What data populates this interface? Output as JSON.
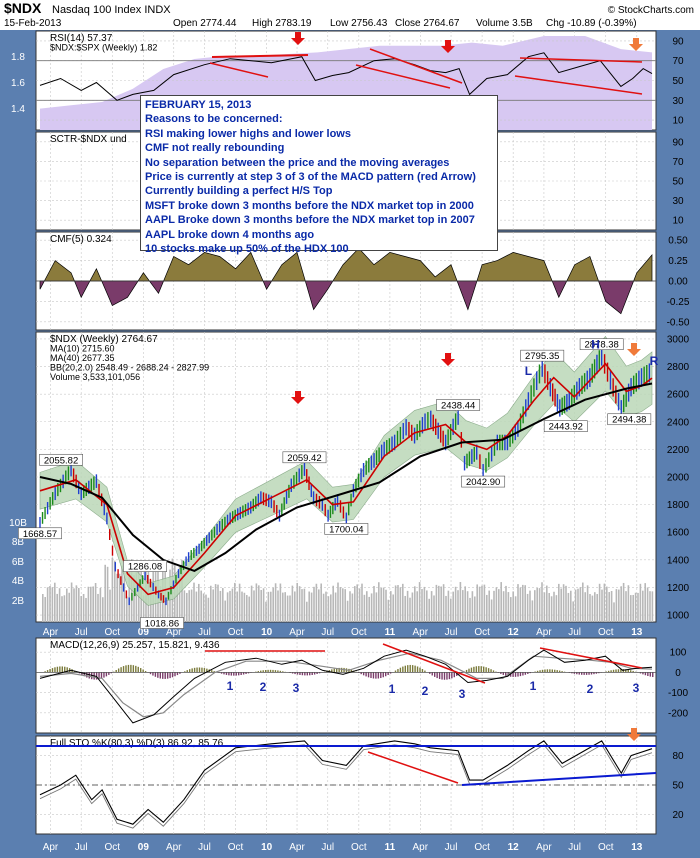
{
  "header": {
    "symbol": "$NDX",
    "name": "Nasdaq 100 Index",
    "exchange": "INDX",
    "date": "15-Feb-2013",
    "open_label": "Open",
    "open": "2774.44",
    "high_label": "High",
    "high": "2783.19",
    "low_label": "Low",
    "low": "2756.43",
    "close_label": "Close",
    "close": "2764.67",
    "volume_label": "Volume",
    "volume": "3.5B",
    "chg_label": "Chg",
    "chg": "-10.89 (-0.39%)",
    "watermark": "© StockCharts.com"
  },
  "annotation": {
    "lines": [
      "FEBRUARY 15, 2013",
      "Reasons to be concerned:",
      "RSI making lower highs and lower lows",
      "CMF not really rebounding",
      "No separation between the price and the moving averages",
      "Price is currently at step 3 of 3 of the MACD pattern (red Arrow)",
      "Currently building a perfect H/S Top",
      "MSFT broke down 3 months before the NDX market top in  2000",
      "AAPL Broke down 3 months before the NDX market top in 2007",
      "AAPL broke down 4 months ago",
      "10 stocks make up 50% of the HDX 100"
    ]
  },
  "colors": {
    "panel_bg": "#ffffff",
    "outer_bg": "#5b7fb0",
    "grid": "#c8c8c8",
    "ratio_fill": "#d7c8f2",
    "rsi_line": "#000000",
    "cmf_fill": "#8b7b3c",
    "cmf_neg": "#7a3b6a",
    "ma10": "#cc0000",
    "ma40": "#000000",
    "bb_fill": "#bcd8b8",
    "up_bar": "#1a8a1a",
    "down_bar": "#cc0000",
    "blue_bar": "#1f3fd0",
    "volume": "#b8b8b8",
    "trend_red": "#e01010",
    "trend_blue": "#0a1ad0",
    "arrow_red": "#e21010",
    "arrow_orange": "#f07a3a",
    "label_blue": "#1a2aa8"
  },
  "time_axis": {
    "start": "2008-03-01",
    "end": "2013-02-15",
    "labels": [
      {
        "date": "2008-04-01",
        "text": "Apr"
      },
      {
        "date": "2008-07-01",
        "text": "Jul"
      },
      {
        "date": "2008-10-01",
        "text": "Oct"
      },
      {
        "date": "2009-01-01",
        "text": "09"
      },
      {
        "date": "2009-04-01",
        "text": "Apr"
      },
      {
        "date": "2009-07-01",
        "text": "Jul"
      },
      {
        "date": "2009-10-01",
        "text": "Oct"
      },
      {
        "date": "2010-01-01",
        "text": "10"
      },
      {
        "date": "2010-04-01",
        "text": "Apr"
      },
      {
        "date": "2010-07-01",
        "text": "Jul"
      },
      {
        "date": "2010-10-01",
        "text": "Oct"
      },
      {
        "date": "2011-01-01",
        "text": "11"
      },
      {
        "date": "2011-04-01",
        "text": "Apr"
      },
      {
        "date": "2011-07-01",
        "text": "Jul"
      },
      {
        "date": "2011-10-01",
        "text": "Oct"
      },
      {
        "date": "2012-01-01",
        "text": "12"
      },
      {
        "date": "2012-04-01",
        "text": "Apr"
      },
      {
        "date": "2012-07-01",
        "text": "Jul"
      },
      {
        "date": "2012-10-01",
        "text": "Oct"
      },
      {
        "date": "2013-01-01",
        "text": "13"
      }
    ]
  },
  "chart_data": [
    {
      "type": "line",
      "panel": "rsi",
      "legend": [
        "RSI(14) 57.37",
        "$NDX:$SPX (Weekly) 1.82"
      ],
      "ylim": [
        0,
        100
      ],
      "yticks_right": [
        10,
        30,
        50,
        70,
        90
      ],
      "yticks_left": [
        "1.8",
        "1.6",
        "1.4"
      ],
      "ratio_range": [
        1.35,
        1.95
      ],
      "series": [
        {
          "name": "RSI(14)",
          "x": [
            "2008-03-01",
            "2008-05-01",
            "2008-07-01",
            "2008-08-15",
            "2008-10-15",
            "2008-12-01",
            "2009-02-01",
            "2009-04-01",
            "2009-07-01",
            "2009-09-15",
            "2010-01-15",
            "2010-04-15",
            "2010-05-25",
            "2010-07-15",
            "2010-09-01",
            "2010-11-15",
            "2011-01-15",
            "2011-03-15",
            "2011-05-01",
            "2011-06-15",
            "2011-07-25",
            "2011-08-25",
            "2011-10-15",
            "2011-12-15",
            "2012-02-15",
            "2012-04-01",
            "2012-05-15",
            "2012-07-15",
            "2012-09-15",
            "2012-11-15",
            "2012-12-20",
            "2013-01-20",
            "2013-02-15"
          ],
          "values": [
            45,
            52,
            40,
            48,
            30,
            36,
            40,
            56,
            66,
            72,
            68,
            74,
            50,
            55,
            58,
            70,
            72,
            66,
            60,
            58,
            62,
            36,
            52,
            56,
            74,
            78,
            58,
            64,
            70,
            44,
            52,
            62,
            57
          ]
        },
        {
          "name": "$NDX:$SPX",
          "x": [
            "2008-03-01",
            "2008-06-01",
            "2008-09-01",
            "2008-12-01",
            "2009-03-01",
            "2009-06-01",
            "2009-09-01",
            "2009-12-01",
            "2010-06-01",
            "2010-12-01",
            "2011-06-01",
            "2011-09-01",
            "2011-12-01",
            "2012-04-01",
            "2012-08-01",
            "2012-11-15",
            "2013-02-15"
          ],
          "values": [
            1.48,
            1.5,
            1.52,
            1.6,
            1.72,
            1.78,
            1.8,
            1.8,
            1.82,
            1.86,
            1.86,
            1.88,
            1.86,
            1.92,
            1.92,
            1.84,
            1.82
          ]
        }
      ],
      "annotations": [
        "lower highs trendlines",
        "lower lows trendline"
      ]
    },
    {
      "type": "line",
      "panel": "sctr",
      "legend": [
        "SCTR-$NDX und"
      ],
      "yticks_right": [
        10,
        30,
        50,
        70,
        90
      ],
      "series": []
    },
    {
      "type": "area",
      "panel": "cmf",
      "legend": [
        "CMF(5) 0.324"
      ],
      "ylim": [
        -0.6,
        0.6
      ],
      "yticks_right": [
        "0.50",
        "0.25",
        "0.00",
        "-0.25",
        "-0.50"
      ],
      "series": [
        {
          "name": "CMF(5)",
          "x": [
            "2008-03-01",
            "2008-04-15",
            "2008-06-01",
            "2008-07-01",
            "2008-08-15",
            "2008-10-01",
            "2008-11-15",
            "2009-01-01",
            "2009-02-15",
            "2009-04-01",
            "2009-05-15",
            "2009-07-01",
            "2009-08-15",
            "2009-10-01",
            "2009-11-15",
            "2010-01-01",
            "2010-02-15",
            "2010-04-01",
            "2010-05-20",
            "2010-07-01",
            "2010-08-15",
            "2010-10-01",
            "2010-11-15",
            "2011-01-01",
            "2011-02-15",
            "2011-04-01",
            "2011-05-15",
            "2011-07-01",
            "2011-08-20",
            "2011-10-01",
            "2011-11-15",
            "2012-01-01",
            "2012-02-15",
            "2012-04-01",
            "2012-05-15",
            "2012-07-01",
            "2012-08-15",
            "2012-10-01",
            "2012-11-15",
            "2013-01-01",
            "2013-02-15"
          ],
          "values": [
            -0.1,
            0.25,
            0.1,
            -0.2,
            0.15,
            -0.3,
            -0.2,
            0.1,
            -0.15,
            0.3,
            0.2,
            0.35,
            0.3,
            0.15,
            0.35,
            -0.1,
            0.2,
            0.35,
            -0.35,
            -0.1,
            0.2,
            0.4,
            0.2,
            0.35,
            0.3,
            0.25,
            0.05,
            0.2,
            -0.35,
            0.2,
            0.25,
            0.35,
            0.3,
            0.25,
            -0.2,
            0.2,
            0.3,
            -0.25,
            -0.4,
            0.1,
            0.32
          ]
        }
      ]
    },
    {
      "type": "line",
      "panel": "price",
      "legend": [
        "$NDX (Weekly) 2764.67",
        "MA(10) 2715.60",
        "MA(40) 2677.35",
        "BB(20,2.0) 2548.49 - 2688.24 - 2827.99",
        "Volume 3,533,101,056"
      ],
      "ylim": [
        950,
        3050
      ],
      "yticks_right": [
        1000,
        1200,
        1400,
        1600,
        1800,
        2000,
        2200,
        2400,
        2600,
        2800,
        3000
      ],
      "volume_ticks_left": [
        "10B",
        "8B",
        "6B",
        "4B",
        "2B"
      ],
      "series": [
        {
          "name": "$NDX",
          "x": [
            "2008-03-01",
            "2008-04-15",
            "2008-06-01",
            "2008-07-01",
            "2008-08-15",
            "2008-09-15",
            "2008-10-10",
            "2008-11-20",
            "2008-12-15",
            "2009-01-06",
            "2009-02-15",
            "2009-03-09",
            "2009-04-15",
            "2009-05-15",
            "2009-06-15",
            "2009-07-15",
            "2009-08-15",
            "2009-09-15",
            "2009-10-15",
            "2009-11-15",
            "2009-12-15",
            "2010-01-15",
            "2010-02-08",
            "2010-03-15",
            "2010-04-23",
            "2010-05-20",
            "2010-06-15",
            "2010-07-02",
            "2010-07-30",
            "2010-08-25",
            "2010-09-15",
            "2010-10-15",
            "2010-11-15",
            "2010-12-15",
            "2011-01-15",
            "2011-02-18",
            "2011-03-15",
            "2011-04-15",
            "2011-05-02",
            "2011-06-15",
            "2011-07-22",
            "2011-08-10",
            "2011-09-15",
            "2011-10-04",
            "2011-11-15",
            "2011-12-15",
            "2012-01-15",
            "2012-02-15",
            "2012-03-27",
            "2012-04-20",
            "2012-05-18",
            "2012-06-15",
            "2012-07-15",
            "2012-08-15",
            "2012-09-19",
            "2012-10-15",
            "2012-11-16",
            "2012-12-15",
            "2013-01-15",
            "2013-02-15"
          ],
          "values": [
            1668.57,
            1880,
            2055.82,
            1880,
            1970,
            1700,
            1350,
            1100,
            1200,
            1286.08,
            1150,
            1100,
            1300,
            1420,
            1480,
            1560,
            1640,
            1700,
            1740,
            1780,
            1850,
            1820,
            1720,
            1940,
            2059.42,
            1850,
            1800,
            1720,
            1830,
            1700.04,
            1900,
            2050,
            2120,
            2200,
            2250,
            2360,
            2300,
            2400,
            2420,
            2250,
            2438.44,
            2100,
            2180,
            2042.9,
            2250,
            2250,
            2350,
            2550,
            2795.35,
            2650,
            2500,
            2550,
            2650,
            2720,
            2878.38,
            2700,
            2494.38,
            2650,
            2720,
            2764.67
          ]
        },
        {
          "name": "MA(10)",
          "x": [
            "2008-03-01",
            "2008-06-15",
            "2008-09-15",
            "2008-11-15",
            "2009-01-15",
            "2009-04-01",
            "2009-07-01",
            "2009-10-01",
            "2010-01-15",
            "2010-04-30",
            "2010-07-15",
            "2010-09-15",
            "2010-12-15",
            "2011-03-15",
            "2011-06-15",
            "2011-08-15",
            "2011-10-15",
            "2011-12-15",
            "2012-03-01",
            "2012-04-30",
            "2012-06-30",
            "2012-09-30",
            "2012-12-01",
            "2013-01-15",
            "2013-02-15"
          ],
          "values": [
            1900,
            1980,
            1800,
            1300,
            1150,
            1200,
            1450,
            1720,
            1850,
            1980,
            1800,
            1820,
            2150,
            2320,
            2380,
            2250,
            2200,
            2300,
            2550,
            2720,
            2580,
            2820,
            2620,
            2660,
            2716
          ]
        },
        {
          "name": "MA(40)",
          "x": [
            "2008-03-01",
            "2008-06-01",
            "2008-09-01",
            "2008-12-01",
            "2009-03-01",
            "2009-06-01",
            "2009-09-01",
            "2009-12-01",
            "2010-04-01",
            "2010-08-01",
            "2010-12-01",
            "2011-04-01",
            "2011-08-01",
            "2011-12-01",
            "2012-04-01",
            "2012-08-01",
            "2012-12-01",
            "2013-02-15"
          ],
          "values": [
            2000,
            1950,
            1850,
            1580,
            1400,
            1320,
            1450,
            1620,
            1780,
            1870,
            1960,
            2150,
            2250,
            2270,
            2420,
            2560,
            2640,
            2677
          ]
        }
      ],
      "labels": [
        "2055.82",
        "1668.57",
        "1286.08",
        "1018.86",
        "2059.42",
        "1700.04",
        "2438.44",
        "2042.90",
        "2795.35",
        "2443.92",
        "2878.38",
        "2494.38"
      ],
      "letters": [
        "L",
        "H",
        "R"
      ]
    },
    {
      "type": "line",
      "panel": "macd",
      "legend": [
        "MACD(12,26,9) 25.257, 15.821, 9.436"
      ],
      "ylim": [
        -300,
        170
      ],
      "yticks_right": [
        100,
        0,
        -100,
        -200
      ],
      "series": [
        {
          "name": "MACD",
          "x": [
            "2008-03-01",
            "2008-06-01",
            "2008-08-15",
            "2008-10-01",
            "2008-12-01",
            "2009-02-01",
            "2009-04-01",
            "2009-06-01",
            "2009-09-01",
            "2009-12-01",
            "2010-02-15",
            "2010-04-15",
            "2010-06-15",
            "2010-08-15",
            "2010-10-15",
            "2010-12-15",
            "2011-02-18",
            "2011-04-15",
            "2011-06-15",
            "2011-08-20",
            "2011-10-15",
            "2011-12-15",
            "2012-02-15",
            "2012-04-01",
            "2012-06-01",
            "2012-08-01",
            "2012-09-30",
            "2012-11-20",
            "2013-01-01",
            "2013-02-15"
          ],
          "values": [
            -30,
            10,
            -20,
            -120,
            -250,
            -210,
            -120,
            -30,
            50,
            70,
            40,
            60,
            10,
            -10,
            20,
            80,
            110,
            80,
            40,
            -50,
            -40,
            -20,
            60,
            110,
            50,
            60,
            80,
            10,
            20,
            25
          ]
        },
        {
          "name": "Signal",
          "x": [
            "2008-03-01",
            "2008-06-01",
            "2008-09-01",
            "2008-11-01",
            "2009-01-01",
            "2009-03-01",
            "2009-05-01",
            "2009-08-01",
            "2009-11-01",
            "2010-03-01",
            "2010-06-15",
            "2010-09-01",
            "2010-12-01",
            "2011-03-01",
            "2011-06-01",
            "2011-09-15",
            "2011-12-01",
            "2012-03-01",
            "2012-05-15",
            "2012-08-15",
            "2012-10-15",
            "2012-12-15",
            "2013-02-15"
          ],
          "values": [
            -20,
            -5,
            -30,
            -150,
            -220,
            -200,
            -110,
            0,
            55,
            55,
            30,
            10,
            60,
            95,
            60,
            -30,
            -30,
            80,
            70,
            60,
            50,
            20,
            16
          ]
        }
      ],
      "step_labels": [
        "1",
        "2",
        "3"
      ]
    },
    {
      "type": "line",
      "panel": "sto",
      "legend": [
        "Full STO %K(80,3) %D(3) 86.92, 85.76"
      ],
      "ylim": [
        0,
        100
      ],
      "yticks_right": [
        20,
        50,
        80
      ],
      "series": [
        {
          "name": "%K",
          "x": [
            "2008-03-01",
            "2008-05-01",
            "2008-06-15",
            "2008-08-01",
            "2008-09-01",
            "2008-10-15",
            "2008-12-01",
            "2009-01-15",
            "2009-03-01",
            "2009-05-01",
            "2009-07-01",
            "2009-10-01",
            "2010-01-15",
            "2010-04-23",
            "2010-06-15",
            "2010-08-25",
            "2010-10-15",
            "2011-01-15",
            "2011-03-15",
            "2011-05-01",
            "2011-07-22",
            "2011-08-25",
            "2011-10-04",
            "2011-12-15",
            "2012-02-15",
            "2012-04-01",
            "2012-05-25",
            "2012-07-15",
            "2012-09-19",
            "2012-11-16",
            "2012-12-15",
            "2013-02-15"
          ],
          "values": [
            40,
            50,
            60,
            35,
            45,
            15,
            10,
            25,
            12,
            35,
            65,
            88,
            92,
            95,
            75,
            70,
            90,
            95,
            92,
            88,
            85,
            55,
            55,
            70,
            85,
            95,
            72,
            82,
            95,
            62,
            80,
            87
          ]
        }
      ]
    }
  ]
}
